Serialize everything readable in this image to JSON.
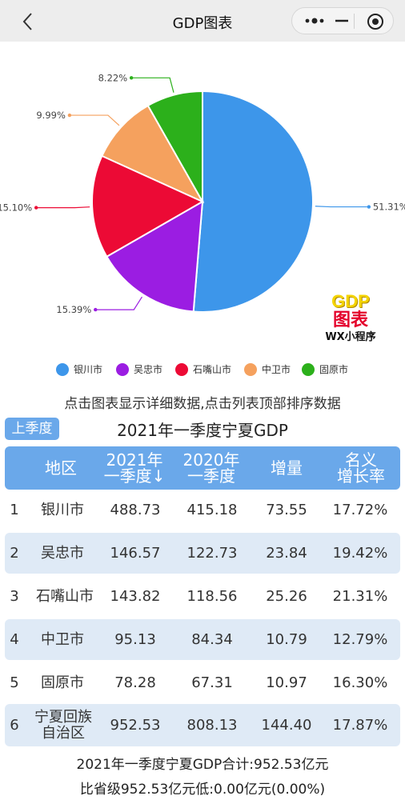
{
  "header": {
    "title": "GDP图表"
  },
  "colors": {
    "accent": "#6aa8ea",
    "yinchuan": "#3d96ea",
    "wuzhong": "#9b1de2",
    "shizuishan": "#ec0a35",
    "zhongwei": "#f5a15e",
    "guyuan": "#2cb01b"
  },
  "chart_data": {
    "type": "pie",
    "categories": [
      "银川市",
      "吴忠市",
      "石嘴山市",
      "中卫市",
      "固原市"
    ],
    "values": [
      51.31,
      15.39,
      15.1,
      9.99,
      8.22
    ],
    "labels": [
      "51.31%",
      "15.39%",
      "15.10%",
      "9.99%",
      "8.22%"
    ],
    "colors": [
      "#3d96ea",
      "#9b1de2",
      "#ec0a35",
      "#f5a15e",
      "#2cb01b"
    ],
    "legend_position": "bottom"
  },
  "logo": {
    "line1": "GDP",
    "line2": "图表",
    "line3": "WX小程序"
  },
  "legend": [
    "银川市",
    "吴忠市",
    "石嘴山市",
    "中卫市",
    "固原市"
  ],
  "hint": "点击图表显示详细数据,点击列表顶部排序数据",
  "season_button": "上季度",
  "table": {
    "title": "2021年一季度宁夏GDP",
    "headers": {
      "region": "地区",
      "cur_l1": "2021年",
      "cur_l2": "一季度↓",
      "prev_l1": "2020年",
      "prev_l2": "一季度",
      "inc": "增量",
      "rate_l1": "名义",
      "rate_l2": "增长率"
    },
    "rows": [
      {
        "rank": "1",
        "name": "银川市",
        "cur": "488.73",
        "prev": "415.18",
        "inc": "73.55",
        "rate": "17.72%"
      },
      {
        "rank": "2",
        "name": "吴忠市",
        "cur": "146.57",
        "prev": "122.73",
        "inc": "23.84",
        "rate": "19.42%"
      },
      {
        "rank": "3",
        "name": "石嘴山市",
        "cur": "143.82",
        "prev": "118.56",
        "inc": "25.26",
        "rate": "21.31%"
      },
      {
        "rank": "4",
        "name": "中卫市",
        "cur": "95.13",
        "prev": "84.34",
        "inc": "10.79",
        "rate": "12.79%"
      },
      {
        "rank": "5",
        "name": "固原市",
        "cur": "78.28",
        "prev": "67.31",
        "inc": "10.97",
        "rate": "16.30%"
      },
      {
        "rank": "6",
        "name_l1": "宁夏回族",
        "name_l2": "自治区",
        "cur": "952.53",
        "prev": "808.13",
        "inc": "144.40",
        "rate": "17.87%"
      }
    ]
  },
  "summary": {
    "line1": "2021年一季度宁夏GDP合计:952.53亿元",
    "line2": "比省级952.53亿元低:0.00亿元(0.00%)"
  }
}
